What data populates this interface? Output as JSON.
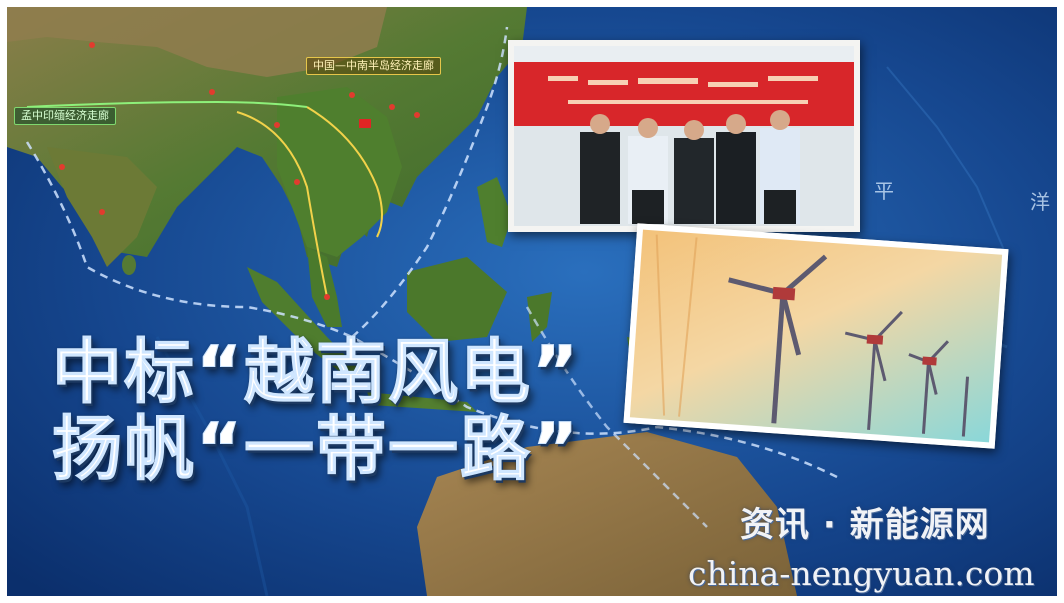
{
  "map": {
    "corridor_labels": {
      "bcim": "孟中印缅经济走廊",
      "china_indochina": "中国—中南半岛经济走廊"
    },
    "sea_chars": [
      "平",
      "洋"
    ]
  },
  "headline": {
    "line1": "中标“越南风电”",
    "line2": "扬帆“一带一路”"
  },
  "photos": {
    "top": "people-signing-ceremony",
    "bottom": "wind-turbines"
  },
  "watermark": {
    "cn": "资讯 · 新能源网",
    "en": "china-nengyuan.com"
  },
  "colors": {
    "ocean_deep": "#0f3f86",
    "ocean_shallow": "#2a78c2",
    "land": "#6a7a3a",
    "banner_red": "#d8262a"
  }
}
